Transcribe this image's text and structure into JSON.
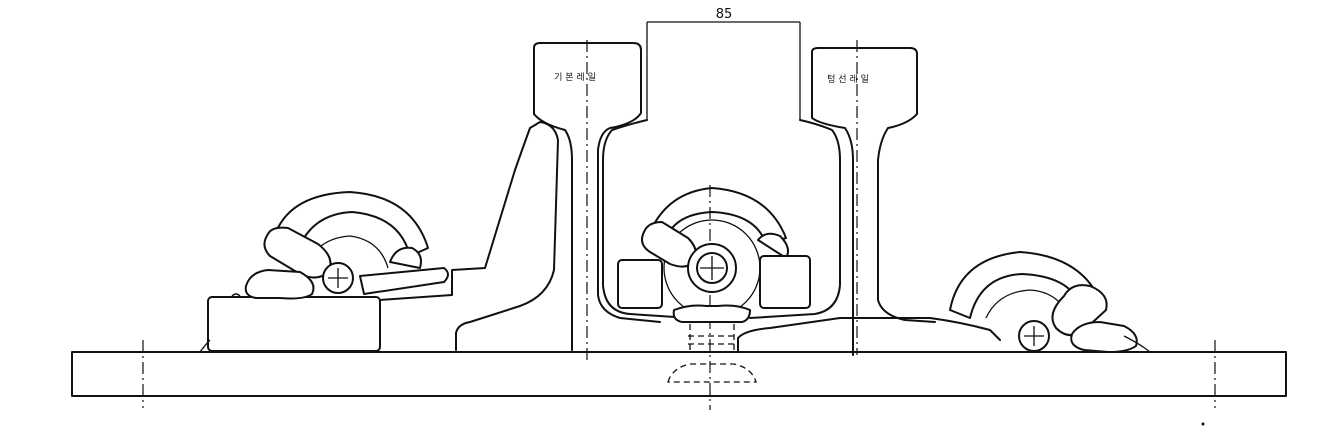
{
  "drawing": {
    "dimension_label": "85",
    "left_rail_label": "기 본 레 일",
    "right_rail_label": "텅 선 레 일"
  }
}
